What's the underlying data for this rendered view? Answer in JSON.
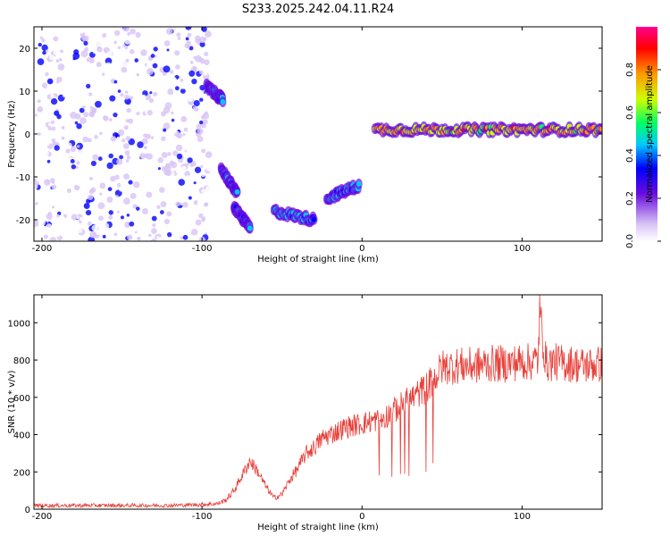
{
  "title": "S233.2025.242.04.11.R24",
  "chart_data": [
    {
      "type": "heatmap",
      "xlabel": "Height of straight line (km)",
      "ylabel": "Frequency (Hz)",
      "xlim": [
        -205,
        150
      ],
      "ylim": [
        -25,
        25
      ],
      "x_ticks": [
        -200,
        -100,
        0,
        100
      ],
      "y_ticks": [
        -20,
        -10,
        0,
        10,
        20
      ],
      "colorbar": {
        "label": "Normalized spectral amplitude",
        "range": [
          0,
          1
        ],
        "ticks": [
          "0.0",
          "0.2",
          "0.4",
          "0.6",
          "0.8"
        ],
        "colors": [
          "#ffffff",
          "#d8c3f5",
          "#6a0dde",
          "#0000ff",
          "#00c8ff",
          "#00ff66",
          "#ccff00",
          "#ff9900",
          "#ff0000",
          "#ff0090"
        ]
      },
      "features": [
        {
          "name": "noise",
          "x": [
            -205,
            -95
          ],
          "y": [
            -25,
            25
          ],
          "level": 0.25
        },
        {
          "name": "drift_a",
          "x": [
            -97,
            -87
          ],
          "y": [
            11,
            8
          ],
          "level": 0.45
        },
        {
          "name": "drift_b",
          "x": [
            -88,
            -78
          ],
          "y": [
            -8,
            -14
          ],
          "level": 0.45
        },
        {
          "name": "drift_c",
          "x": [
            -80,
            -70
          ],
          "y": [
            -17,
            -22
          ],
          "level": 0.45
        },
        {
          "name": "blob_d",
          "x": [
            -55,
            -30
          ],
          "y": [
            -18,
            -20
          ],
          "level": 0.5
        },
        {
          "name": "blob_e",
          "x": [
            -22,
            -2
          ],
          "y": [
            -15,
            -12
          ],
          "level": 0.5
        },
        {
          "name": "main_tone",
          "x": [
            8,
            150
          ],
          "y": [
            1,
            1
          ],
          "level": 0.85
        }
      ]
    },
    {
      "type": "line",
      "xlabel": "Height of straight line (km)",
      "ylabel": "SNR (10 * v/v)",
      "xlim": [
        -205,
        150
      ],
      "ylim": [
        0,
        1150
      ],
      "x_ticks": [
        -200,
        -100,
        0,
        100
      ],
      "y_ticks": [
        0,
        200,
        400,
        600,
        800,
        1000
      ],
      "series": [
        {
          "color": "#e8403a",
          "x": [
            -205,
            -180,
            -150,
            -120,
            -100,
            -90,
            -85,
            -80,
            -75,
            -70,
            -65,
            -60,
            -55,
            -50,
            -45,
            -40,
            -35,
            -30,
            -25,
            -20,
            -15,
            -10,
            -5,
            0,
            5,
            10,
            15,
            20,
            25,
            30,
            35,
            40,
            45,
            50,
            60,
            70,
            80,
            90,
            100,
            105,
            110,
            111,
            115,
            120,
            130,
            140,
            150
          ],
          "values": [
            20,
            20,
            20,
            20,
            25,
            30,
            50,
            100,
            180,
            260,
            200,
            120,
            60,
            80,
            160,
            220,
            300,
            330,
            380,
            400,
            420,
            440,
            450,
            460,
            470,
            480,
            500,
            530,
            560,
            590,
            620,
            650,
            700,
            760,
            770,
            770,
            780,
            780,
            790,
            790,
            800,
            1050,
            780,
            790,
            780,
            770,
            780
          ]
        }
      ]
    }
  ]
}
